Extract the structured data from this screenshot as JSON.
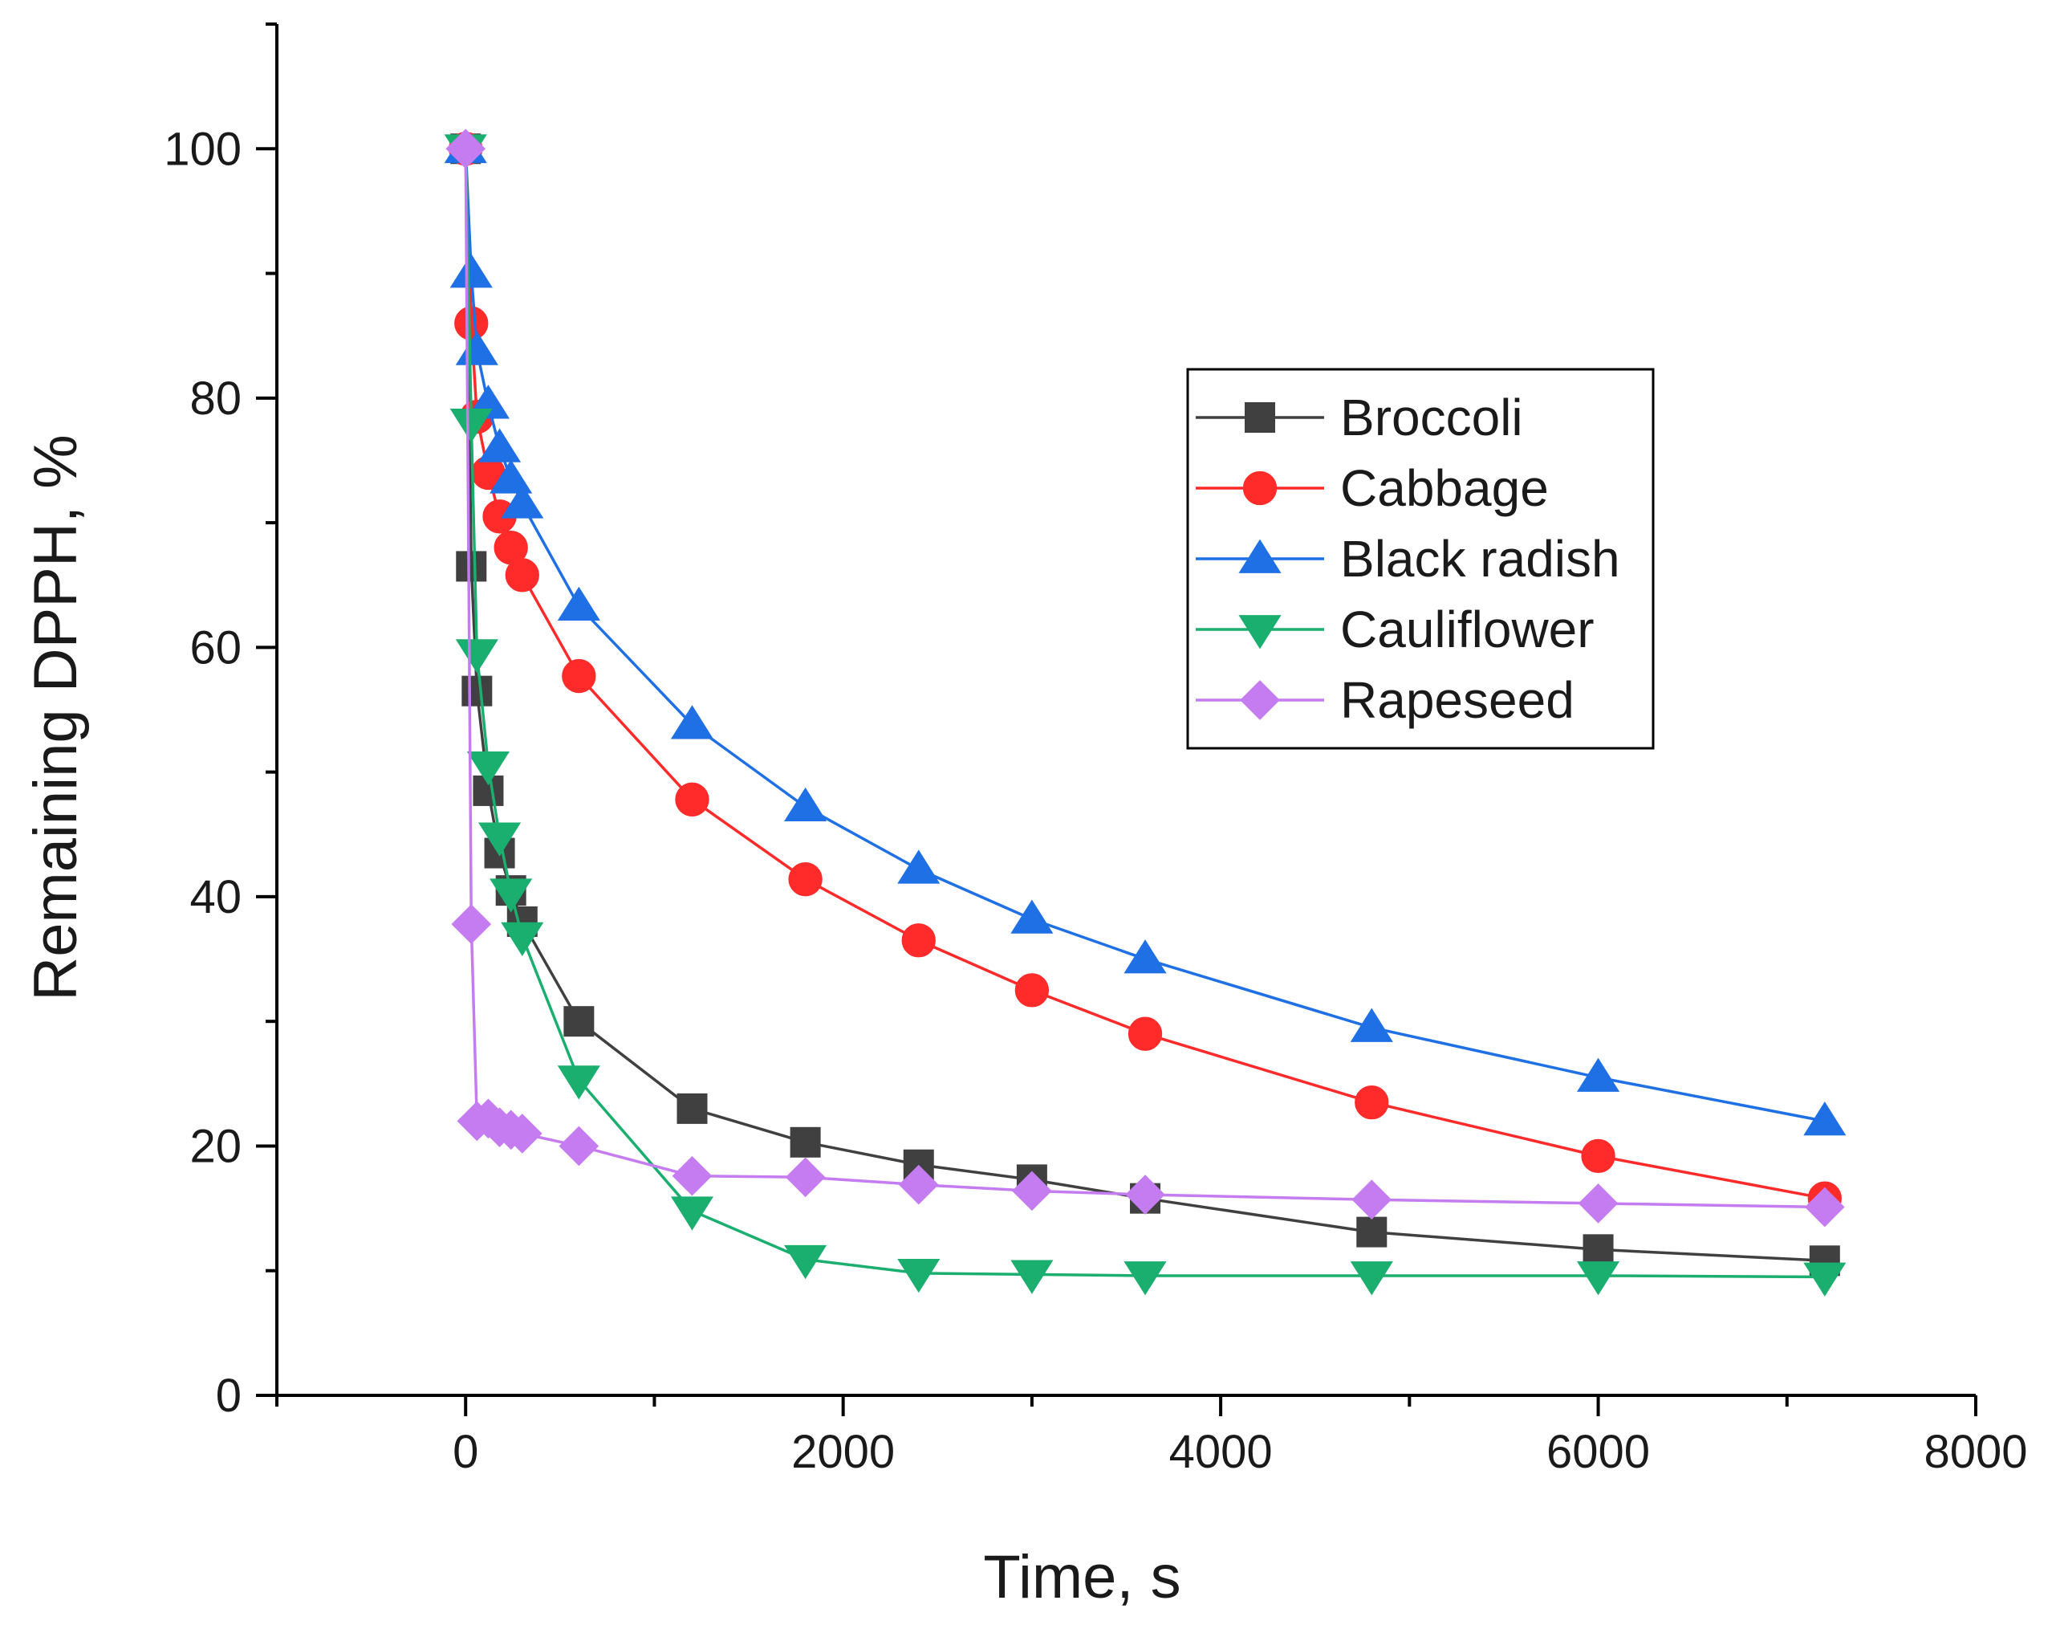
{
  "chart_data": {
    "type": "line",
    "title": "",
    "xlabel": "Time, s",
    "ylabel": "Remaining DPPH, %",
    "xlim": [
      -1000,
      8000
    ],
    "ylim": [
      0,
      110
    ],
    "x_ticks": [
      0,
      2000,
      4000,
      6000,
      8000
    ],
    "x_tick_labels": [
      "0",
      "2000",
      "4000",
      "6000",
      "8000"
    ],
    "y_ticks": [
      0,
      20,
      40,
      60,
      80,
      100
    ],
    "y_tick_labels": [
      "0",
      "20",
      "40",
      "60",
      "80",
      "100"
    ],
    "grid": false,
    "legend_position": "upper-right",
    "series": [
      {
        "name": "Broccoli",
        "color": "#404040",
        "marker": "square",
        "x": [
          0,
          30,
          60,
          120,
          180,
          240,
          300,
          600,
          1200,
          1800,
          2400,
          3000,
          3600,
          4800,
          6000,
          7200
        ],
        "y": [
          100,
          66.5,
          56.5,
          48.5,
          43.5,
          40.5,
          38,
          30,
          23,
          20.3,
          18.5,
          17.3,
          15.8,
          13.1,
          11.7,
          10.8
        ]
      },
      {
        "name": "Cabbage",
        "color": "#ff2a2a",
        "marker": "circle",
        "x": [
          0,
          30,
          60,
          120,
          180,
          240,
          300,
          600,
          1200,
          1800,
          2400,
          3000,
          3600,
          4800,
          6000,
          7200
        ],
        "y": [
          100,
          86,
          78.5,
          74,
          70.5,
          68,
          65.8,
          57.7,
          47.8,
          41.4,
          36.5,
          32.5,
          29,
          23.5,
          19.2,
          15.8
        ]
      },
      {
        "name": "Black radish",
        "color": "#1f6fe5",
        "marker": "triangle-up",
        "x": [
          0,
          30,
          60,
          120,
          180,
          240,
          300,
          600,
          1200,
          1800,
          2400,
          3000,
          3600,
          4800,
          6000,
          7200
        ],
        "y": [
          100,
          90,
          83.8,
          79.5,
          76,
          73.5,
          71.5,
          63.3,
          53.8,
          47.2,
          42.2,
          38.2,
          35,
          29.5,
          25.5,
          22
        ]
      },
      {
        "name": "Cauliflower",
        "color": "#1aae6f",
        "marker": "triangle-down",
        "x": [
          0,
          30,
          60,
          120,
          180,
          240,
          300,
          600,
          1200,
          1800,
          2400,
          3000,
          3600,
          4800,
          6000,
          7200
        ],
        "y": [
          100,
          78,
          59.5,
          50.5,
          44.8,
          40.3,
          36.8,
          25.3,
          14.8,
          10.9,
          9.8,
          9.7,
          9.6,
          9.6,
          9.6,
          9.5
        ]
      },
      {
        "name": "Rapeseed",
        "color": "#c47cf0",
        "marker": "diamond",
        "x": [
          0,
          30,
          60,
          120,
          180,
          240,
          300,
          600,
          1200,
          1800,
          2400,
          3000,
          3600,
          4800,
          6000,
          7200
        ],
        "y": [
          100,
          37.8,
          22,
          22.2,
          21.5,
          21.3,
          21,
          20,
          17.6,
          17.5,
          16.9,
          16.4,
          16.1,
          15.7,
          15.4,
          15.1
        ]
      }
    ]
  }
}
